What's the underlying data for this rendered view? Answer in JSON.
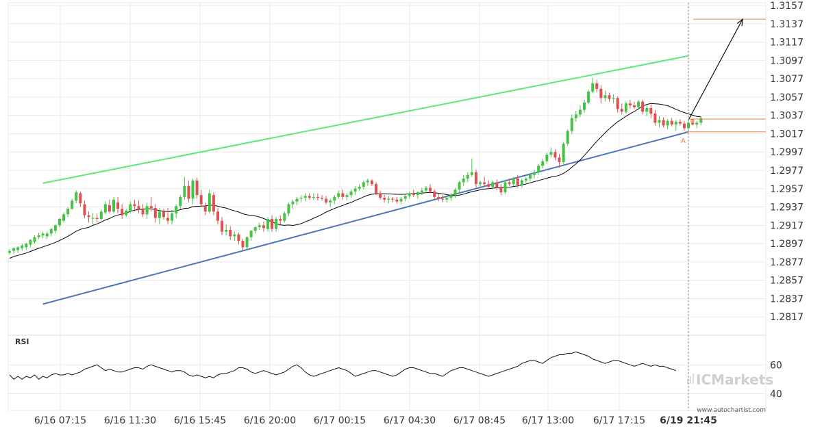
{
  "chart_data": {
    "type": "candlestick",
    "grid": true,
    "price_axis": {
      "ylim": [
        1.2797,
        1.3157
      ],
      "ticks": [
        "1.3157",
        "1.3137",
        "1.3117",
        "1.3097",
        "1.3077",
        "1.3057",
        "1.3037",
        "1.3017",
        "1.2997",
        "1.2977",
        "1.2957",
        "1.2937",
        "1.2917",
        "1.2897",
        "1.2877",
        "1.2857",
        "1.2837",
        "1.2817"
      ]
    },
    "time_axis": {
      "ticks": [
        "6/16 07:15",
        "6/16 11:30",
        "6/16 15:45",
        "6/16 20:00",
        "6/17 00:15",
        "6/17 04:30",
        "6/17 08:45",
        "6/17 13:00",
        "6/17 17:15"
      ],
      "current_label": "6/19 21:45"
    },
    "ohlc": [
      [
        1.2887,
        1.2891,
        1.2885,
        1.2889
      ],
      [
        1.2889,
        1.2893,
        1.2886,
        1.2892
      ],
      [
        1.289,
        1.2894,
        1.2887,
        1.2893
      ],
      [
        1.2892,
        1.2897,
        1.2889,
        1.2895
      ],
      [
        1.2893,
        1.2898,
        1.289,
        1.2897
      ],
      [
        1.2896,
        1.2902,
        1.2893,
        1.2901
      ],
      [
        1.2899,
        1.2906,
        1.2897,
        1.2904
      ],
      [
        1.2904,
        1.2909,
        1.2902,
        1.2906
      ],
      [
        1.2906,
        1.291,
        1.2903,
        1.2908
      ],
      [
        1.2905,
        1.291,
        1.2902,
        1.2908
      ],
      [
        1.2908,
        1.2914,
        1.2905,
        1.2913
      ],
      [
        1.2911,
        1.2918,
        1.2908,
        1.2917
      ],
      [
        1.2917,
        1.2925,
        1.2915,
        1.2924
      ],
      [
        1.2922,
        1.2931,
        1.292,
        1.2929
      ],
      [
        1.2929,
        1.2937,
        1.2926,
        1.2935
      ],
      [
        1.2935,
        1.2946,
        1.2934,
        1.2944
      ],
      [
        1.2944,
        1.2955,
        1.2941,
        1.2953
      ],
      [
        1.2952,
        1.2954,
        1.2937,
        1.2941
      ],
      [
        1.294,
        1.2944,
        1.2925,
        1.2928
      ],
      [
        1.2928,
        1.2932,
        1.292,
        1.2926
      ],
      [
        1.2925,
        1.293,
        1.2918,
        1.2925
      ],
      [
        1.2925,
        1.293,
        1.292,
        1.2924
      ],
      [
        1.2924,
        1.2934,
        1.2922,
        1.2932
      ],
      [
        1.2931,
        1.2943,
        1.2929,
        1.294
      ],
      [
        1.2939,
        1.2945,
        1.293,
        1.2932
      ],
      [
        1.2932,
        1.2948,
        1.293,
        1.2945
      ],
      [
        1.2942,
        1.2948,
        1.293,
        1.2935
      ],
      [
        1.2935,
        1.294,
        1.2924,
        1.2928
      ],
      [
        1.2928,
        1.2935,
        1.2926,
        1.2933
      ],
      [
        1.2932,
        1.2943,
        1.293,
        1.294
      ],
      [
        1.294,
        1.2945,
        1.2932,
        1.2938
      ],
      [
        1.2938,
        1.2944,
        1.293,
        1.2934
      ],
      [
        1.2934,
        1.294,
        1.2926,
        1.2929
      ],
      [
        1.2929,
        1.2942,
        1.2924,
        1.2938
      ],
      [
        1.2938,
        1.2948,
        1.2932,
        1.2936
      ],
      [
        1.2936,
        1.294,
        1.292,
        1.2925
      ],
      [
        1.2925,
        1.2936,
        1.2918,
        1.2932
      ],
      [
        1.2932,
        1.2935,
        1.2923,
        1.2926
      ],
      [
        1.2925,
        1.2936,
        1.2918,
        1.2922
      ],
      [
        1.2922,
        1.2934,
        1.2918,
        1.293
      ],
      [
        1.293,
        1.294,
        1.2925,
        1.2938
      ],
      [
        1.2938,
        1.295,
        1.2935,
        1.2948
      ],
      [
        1.2948,
        1.297,
        1.2945,
        1.296
      ],
      [
        1.296,
        1.2966,
        1.2942,
        1.2946
      ],
      [
        1.2946,
        1.2968,
        1.294,
        1.2966
      ],
      [
        1.2966,
        1.2969,
        1.2946,
        1.295
      ],
      [
        1.295,
        1.2956,
        1.2937,
        1.294
      ],
      [
        1.2938,
        1.2942,
        1.2928,
        1.2932
      ],
      [
        1.2932,
        1.2956,
        1.293,
        1.2952
      ],
      [
        1.295,
        1.2953,
        1.2928,
        1.2932
      ],
      [
        1.2932,
        1.2936,
        1.2918,
        1.2922
      ],
      [
        1.2922,
        1.2926,
        1.2906,
        1.291
      ],
      [
        1.291,
        1.2918,
        1.2906,
        1.2912
      ],
      [
        1.2912,
        1.2916,
        1.2901,
        1.2905
      ],
      [
        1.2905,
        1.291,
        1.29,
        1.2907
      ],
      [
        1.2907,
        1.2909,
        1.2896,
        1.29
      ],
      [
        1.29,
        1.2902,
        1.2889,
        1.2893
      ],
      [
        1.2893,
        1.2905,
        1.2891,
        1.2904
      ],
      [
        1.2904,
        1.2912,
        1.29,
        1.2911
      ],
      [
        1.2911,
        1.2916,
        1.2908,
        1.2915
      ],
      [
        1.2915,
        1.292,
        1.2912,
        1.2917
      ],
      [
        1.2917,
        1.2921,
        1.291,
        1.2914
      ],
      [
        1.2913,
        1.2926,
        1.291,
        1.2924
      ],
      [
        1.2924,
        1.2928,
        1.291,
        1.2913
      ],
      [
        1.2913,
        1.2926,
        1.291,
        1.2924
      ],
      [
        1.2924,
        1.2928,
        1.2918,
        1.2922
      ],
      [
        1.2922,
        1.2932,
        1.292,
        1.293
      ],
      [
        1.293,
        1.2942,
        1.2927,
        1.294
      ],
      [
        1.294,
        1.2945,
        1.2935,
        1.2943
      ],
      [
        1.2943,
        1.2948,
        1.2939,
        1.2946
      ],
      [
        1.2946,
        1.295,
        1.2942,
        1.2947
      ],
      [
        1.2947,
        1.2952,
        1.2943,
        1.2949
      ],
      [
        1.2949,
        1.2952,
        1.2945,
        1.2947
      ],
      [
        1.2947,
        1.2952,
        1.2945,
        1.2948
      ],
      [
        1.2948,
        1.2952,
        1.2944,
        1.2947
      ],
      [
        1.2947,
        1.295,
        1.2944,
        1.2946
      ],
      [
        1.2946,
        1.2949,
        1.294,
        1.2942
      ],
      [
        1.2942,
        1.2946,
        1.2937,
        1.2944
      ],
      [
        1.2944,
        1.295,
        1.294,
        1.2948
      ],
      [
        1.2948,
        1.2955,
        1.2946,
        1.2952
      ],
      [
        1.2952,
        1.2956,
        1.2945,
        1.2948
      ],
      [
        1.2948,
        1.2952,
        1.2944,
        1.295
      ],
      [
        1.295,
        1.2956,
        1.2947,
        1.2954
      ],
      [
        1.2954,
        1.296,
        1.295,
        1.2957
      ],
      [
        1.2957,
        1.2962,
        1.2955,
        1.2959
      ],
      [
        1.2959,
        1.2966,
        1.2956,
        1.2964
      ],
      [
        1.2964,
        1.2968,
        1.296,
        1.2966
      ],
      [
        1.2966,
        1.2967,
        1.296,
        1.2962
      ],
      [
        1.2962,
        1.2964,
        1.295,
        1.2952
      ],
      [
        1.2952,
        1.2955,
        1.2945,
        1.2947
      ],
      [
        1.2947,
        1.295,
        1.2942,
        1.2945
      ],
      [
        1.2945,
        1.2949,
        1.2941,
        1.2946
      ],
      [
        1.2946,
        1.2948,
        1.2942,
        1.2945
      ],
      [
        1.2945,
        1.2948,
        1.2941,
        1.2943
      ],
      [
        1.2943,
        1.2948,
        1.294,
        1.2946
      ],
      [
        1.2946,
        1.2951,
        1.2943,
        1.2949
      ],
      [
        1.2949,
        1.2954,
        1.2946,
        1.2952
      ],
      [
        1.2952,
        1.2956,
        1.2948,
        1.295
      ],
      [
        1.295,
        1.2954,
        1.2946,
        1.2953
      ],
      [
        1.2953,
        1.2958,
        1.295,
        1.2955
      ],
      [
        1.2955,
        1.296,
        1.2952,
        1.2958
      ],
      [
        1.2958,
        1.2962,
        1.2952,
        1.2954
      ],
      [
        1.2954,
        1.2956,
        1.2946,
        1.2948
      ],
      [
        1.2948,
        1.2952,
        1.2943,
        1.2946
      ],
      [
        1.2946,
        1.295,
        1.2942,
        1.2945
      ],
      [
        1.2945,
        1.295,
        1.2942,
        1.2947
      ],
      [
        1.2947,
        1.2952,
        1.2944,
        1.295
      ],
      [
        1.295,
        1.2958,
        1.2947,
        1.2956
      ],
      [
        1.2956,
        1.2966,
        1.2953,
        1.2964
      ],
      [
        1.2964,
        1.2972,
        1.296,
        1.2968
      ],
      [
        1.2968,
        1.2975,
        1.2964,
        1.2972
      ],
      [
        1.2972,
        1.299,
        1.297,
        1.2975
      ],
      [
        1.2975,
        1.2978,
        1.2958,
        1.2962
      ],
      [
        1.2962,
        1.2966,
        1.2958,
        1.2964
      ],
      [
        1.2964,
        1.297,
        1.296,
        1.2962
      ],
      [
        1.2962,
        1.2966,
        1.2957,
        1.2959
      ],
      [
        1.2959,
        1.2966,
        1.2956,
        1.2964
      ],
      [
        1.2964,
        1.2967,
        1.2955,
        1.2958
      ],
      [
        1.2958,
        1.2962,
        1.295,
        1.2953
      ],
      [
        1.2953,
        1.2966,
        1.2951,
        1.2964
      ],
      [
        1.2964,
        1.2968,
        1.296,
        1.2962
      ],
      [
        1.2962,
        1.297,
        1.296,
        1.2968
      ],
      [
        1.2968,
        1.2972,
        1.2958,
        1.2961
      ],
      [
        1.2961,
        1.2968,
        1.2958,
        1.2966
      ],
      [
        1.2966,
        1.297,
        1.2962,
        1.2968
      ],
      [
        1.2968,
        1.2974,
        1.2965,
        1.2972
      ],
      [
        1.2972,
        1.2978,
        1.2968,
        1.2975
      ],
      [
        1.2975,
        1.2984,
        1.2972,
        1.2982
      ],
      [
        1.2982,
        1.299,
        1.2979,
        1.2987
      ],
      [
        1.2987,
        1.2996,
        1.2984,
        1.2994
      ],
      [
        1.2994,
        1.3002,
        1.2991,
        1.2997
      ],
      [
        1.2997,
        1.3,
        1.2988,
        1.2991
      ],
      [
        1.2991,
        1.2995,
        1.298,
        1.2986
      ],
      [
        1.2986,
        1.3008,
        1.2984,
        1.3006
      ],
      [
        1.3006,
        1.3022,
        1.3004,
        1.302
      ],
      [
        1.302,
        1.3038,
        1.3017,
        1.3034
      ],
      [
        1.3034,
        1.3042,
        1.303,
        1.3038
      ],
      [
        1.3038,
        1.3048,
        1.3035,
        1.3043
      ],
      [
        1.3043,
        1.3054,
        1.304,
        1.3051
      ],
      [
        1.3051,
        1.3065,
        1.3049,
        1.3063
      ],
      [
        1.3063,
        1.3078,
        1.3061,
        1.3072
      ],
      [
        1.3072,
        1.3076,
        1.3062,
        1.3066
      ],
      [
        1.3066,
        1.307,
        1.305,
        1.3056
      ],
      [
        1.3056,
        1.3064,
        1.3052,
        1.3059
      ],
      [
        1.3059,
        1.3062,
        1.3052,
        1.3055
      ],
      [
        1.3055,
        1.306,
        1.305,
        1.3056
      ],
      [
        1.3056,
        1.3058,
        1.304,
        1.3044
      ],
      [
        1.3044,
        1.305,
        1.3038,
        1.3041
      ],
      [
        1.3041,
        1.3052,
        1.3039,
        1.305
      ],
      [
        1.305,
        1.3054,
        1.3044,
        1.3048
      ],
      [
        1.3048,
        1.3052,
        1.3044,
        1.3046
      ],
      [
        1.3046,
        1.3054,
        1.3043,
        1.3052
      ],
      [
        1.3052,
        1.3054,
        1.3038,
        1.3041
      ],
      [
        1.3041,
        1.3048,
        1.3036,
        1.3045
      ],
      [
        1.3045,
        1.3049,
        1.3034,
        1.3039
      ],
      [
        1.3039,
        1.3043,
        1.3026,
        1.3029
      ],
      [
        1.3029,
        1.3036,
        1.3024,
        1.3032
      ],
      [
        1.3032,
        1.3035,
        1.3024,
        1.3026
      ],
      [
        1.3026,
        1.3033,
        1.3022,
        1.3031
      ],
      [
        1.3031,
        1.3034,
        1.3025,
        1.3027
      ],
      [
        1.3027,
        1.3032,
        1.302,
        1.303
      ],
      [
        1.303,
        1.3033,
        1.3026,
        1.3028
      ],
      [
        1.3028,
        1.3031,
        1.302,
        1.3023
      ],
      [
        1.3023,
        1.3031,
        1.302,
        1.3029
      ],
      [
        1.3029,
        1.3032,
        1.3026,
        1.3027
      ],
      [
        1.3027,
        1.3031,
        1.3023,
        1.3029
      ],
      [
        1.3029,
        1.3036,
        1.3026,
        1.3034
      ]
    ],
    "ma_period": 20,
    "channel": {
      "upper": {
        "from": [
          8,
          1.2963
        ],
        "to": [
          163,
          1.3102
        ]
      },
      "lower": {
        "from": [
          8,
          1.2831
        ],
        "to": [
          163,
          1.3019
        ]
      }
    },
    "forecast_arrow": {
      "from": [
        163,
        1.3032
      ],
      "to": [
        176,
        1.3142
      ]
    },
    "levels": [
      1.3142,
      1.3033,
      1.3019
    ],
    "pattern_point_label": "A",
    "rsi": {
      "label": "RSI",
      "ticks": [
        "60",
        "40"
      ],
      "ylim": [
        34,
        72
      ],
      "values": [
        54,
        53,
        51,
        53,
        50,
        52,
        50,
        52,
        51,
        53,
        50,
        52,
        51,
        53,
        54,
        53,
        53,
        54,
        53,
        54,
        55,
        57,
        58,
        59,
        60,
        58,
        56,
        57,
        56,
        55,
        55,
        56,
        57,
        58,
        58,
        57,
        59,
        60,
        59,
        58,
        57,
        56,
        55,
        56,
        56,
        55,
        53,
        52,
        53,
        52,
        51,
        52,
        51,
        53,
        54,
        54,
        55,
        56,
        58,
        58,
        57,
        55,
        54,
        55,
        56,
        55,
        54,
        53,
        54,
        55,
        57,
        59,
        60,
        58,
        55,
        53,
        52,
        53,
        54,
        55,
        56,
        57,
        58,
        57,
        56,
        54,
        52,
        53,
        54,
        55,
        56,
        56,
        55,
        54,
        53,
        52,
        53,
        55,
        57,
        58,
        58,
        57,
        56,
        55,
        54,
        54,
        53,
        52,
        54,
        56,
        57,
        58,
        58,
        57,
        56,
        55,
        54,
        53,
        52,
        53,
        54,
        55,
        56,
        57,
        58,
        59,
        61,
        62,
        63,
        63,
        62,
        61,
        63,
        65,
        66,
        67,
        67,
        68,
        68,
        69,
        68,
        67,
        66,
        64,
        63,
        62,
        61,
        62,
        63,
        63,
        62,
        61,
        60,
        59,
        60,
        61,
        60,
        59,
        60,
        59,
        59,
        58,
        57,
        56
      ],
      "visible_from": 3
    }
  },
  "watermark": {
    "brand_left": "IC",
    "brand_right": "Markets",
    "url": "www.autochartist.com"
  },
  "colors": {
    "bull": "#44c344",
    "bear": "#e05050",
    "grid": "#eaeaea",
    "upper_channel": "#5ee87a",
    "lower_channel": "#4a77b4",
    "level_line": "#e8823a",
    "text": "#333333",
    "ma": "#000000"
  }
}
